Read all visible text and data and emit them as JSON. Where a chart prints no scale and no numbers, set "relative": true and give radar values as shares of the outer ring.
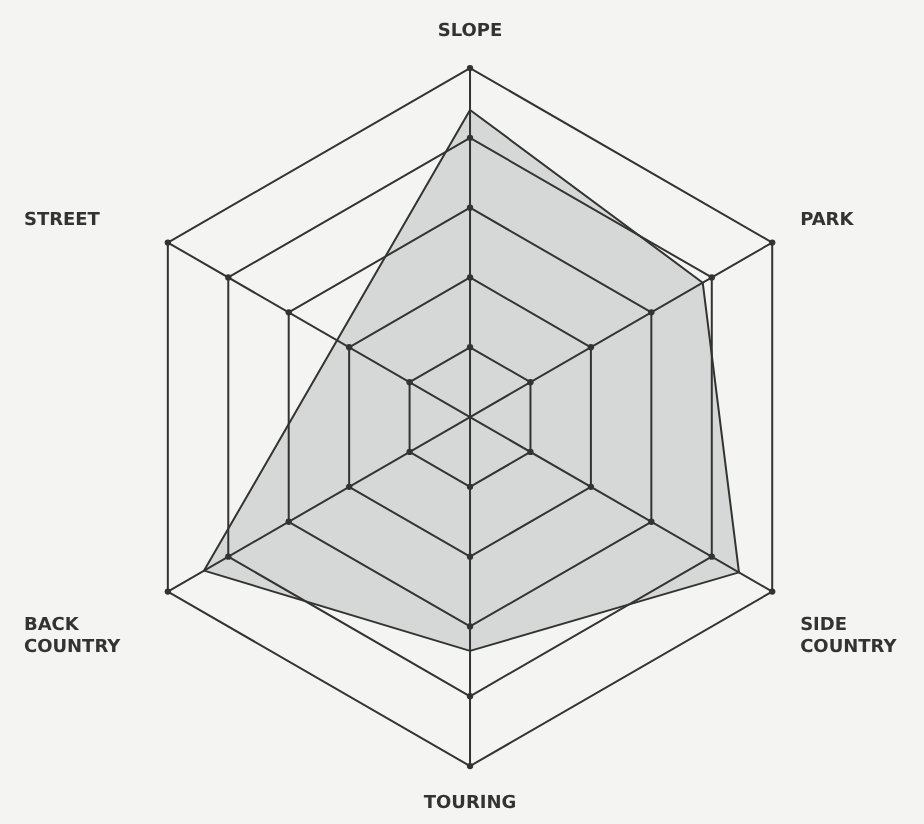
{
  "chart_data": {
    "type": "radar",
    "relative": true,
    "grid": true,
    "categories": [
      "SLOPE",
      "PARK",
      "SIDE COUNTRY",
      "TOURING",
      "BACK COUNTRY",
      "STREET"
    ],
    "series": [
      {
        "color": "#d3d4d4",
        "values": [
          0.88,
          0.77,
          0.89,
          0.67,
          0.88,
          0.44
        ]
      }
    ]
  }
}
